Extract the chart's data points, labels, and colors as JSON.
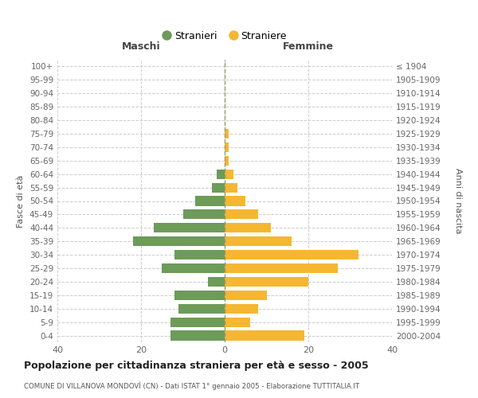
{
  "age_groups": [
    "0-4",
    "5-9",
    "10-14",
    "15-19",
    "20-24",
    "25-29",
    "30-34",
    "35-39",
    "40-44",
    "45-49",
    "50-54",
    "55-59",
    "60-64",
    "65-69",
    "70-74",
    "75-79",
    "80-84",
    "85-89",
    "90-94",
    "95-99",
    "100+"
  ],
  "birth_years": [
    "2000-2004",
    "1995-1999",
    "1990-1994",
    "1985-1989",
    "1980-1984",
    "1975-1979",
    "1970-1974",
    "1965-1969",
    "1960-1964",
    "1955-1959",
    "1950-1954",
    "1945-1949",
    "1940-1944",
    "1935-1939",
    "1930-1934",
    "1925-1929",
    "1920-1924",
    "1915-1919",
    "1910-1914",
    "1905-1909",
    "≤ 1904"
  ],
  "maschi": [
    13,
    13,
    11,
    12,
    4,
    15,
    12,
    22,
    17,
    10,
    7,
    3,
    2,
    0,
    0,
    0,
    0,
    0,
    0,
    0,
    0
  ],
  "femmine": [
    19,
    6,
    8,
    10,
    20,
    27,
    32,
    16,
    11,
    8,
    5,
    3,
    2,
    1,
    1,
    1,
    0,
    0,
    0,
    0,
    0
  ],
  "color_maschi": "#6d9b5a",
  "color_femmine": "#f5b731",
  "title": "Popolazione per cittadinanza straniera per età e sesso - 2005",
  "subtitle": "COMUNE DI VILLANOVA MONDOVÌ (CN) - Dati ISTAT 1° gennaio 2005 - Elaborazione TUTTITALIA.IT",
  "ylabel_left": "Fasce di età",
  "ylabel_right": "Anni di nascita",
  "xlim": 40,
  "legend_stranieri": "Stranieri",
  "legend_straniere": "Straniere",
  "maschi_label": "Maschi",
  "femmine_label": "Femmine",
  "grid_color": "#cccccc",
  "background_color": "#ffffff"
}
